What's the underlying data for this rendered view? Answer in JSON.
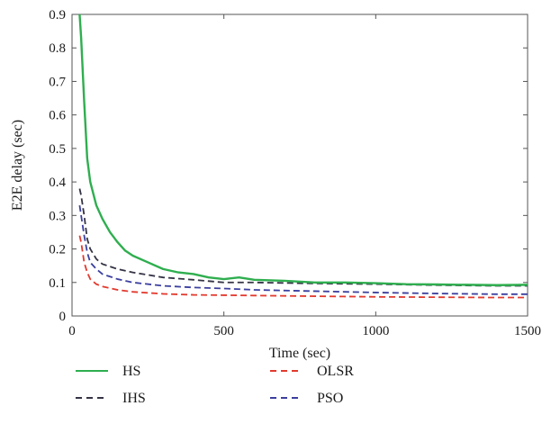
{
  "chart_data": {
    "type": "line",
    "xlabel": "Time (sec)",
    "ylabel": "E2E delay (sec)",
    "xlim": [
      0,
      1500
    ],
    "ylim": [
      0,
      0.9
    ],
    "xticks": [
      "0",
      "500",
      "1000",
      "1500"
    ],
    "yticks": [
      "0",
      "0.1",
      "0.2",
      "0.3",
      "0.4",
      "0.5",
      "0.6",
      "0.7",
      "0.8",
      "0.9"
    ],
    "grid": false,
    "legend_position": "below",
    "series": [
      {
        "name": "HS",
        "color": "#2fae4f",
        "dash": "solid",
        "x": [
          25,
          30,
          40,
          50,
          60,
          80,
          100,
          125,
          150,
          175,
          200,
          250,
          300,
          350,
          400,
          450,
          500,
          550,
          600,
          700,
          800,
          900,
          1000,
          1100,
          1200,
          1300,
          1400,
          1500
        ],
        "y": [
          0.9,
          0.83,
          0.64,
          0.47,
          0.4,
          0.33,
          0.29,
          0.25,
          0.22,
          0.195,
          0.18,
          0.16,
          0.14,
          0.13,
          0.125,
          0.115,
          0.11,
          0.115,
          0.108,
          0.105,
          0.1,
          0.1,
          0.098,
          0.095,
          0.094,
          0.093,
          0.092,
          0.093
        ]
      },
      {
        "name": "IHS",
        "color": "#333344",
        "dash": "dashed",
        "x": [
          25,
          30,
          40,
          50,
          60,
          80,
          100,
          150,
          200,
          300,
          400,
          500,
          600,
          800,
          1000,
          1200,
          1400,
          1500
        ],
        "y": [
          0.38,
          0.36,
          0.3,
          0.23,
          0.2,
          0.17,
          0.155,
          0.14,
          0.13,
          0.115,
          0.108,
          0.1,
          0.1,
          0.097,
          0.095,
          0.092,
          0.09,
          0.09
        ]
      },
      {
        "name": "OLSR",
        "color": "#e23a2e",
        "dash": "dashed",
        "x": [
          25,
          30,
          40,
          50,
          60,
          80,
          100,
          150,
          200,
          300,
          400,
          500,
          600,
          800,
          1000,
          1200,
          1400,
          1500
        ],
        "y": [
          0.24,
          0.22,
          0.16,
          0.13,
          0.11,
          0.095,
          0.088,
          0.078,
          0.072,
          0.066,
          0.063,
          0.062,
          0.061,
          0.059,
          0.057,
          0.056,
          0.055,
          0.055
        ]
      },
      {
        "name": "PSO",
        "color": "#3b3f9e",
        "dash": "dashed",
        "x": [
          25,
          30,
          40,
          50,
          60,
          80,
          100,
          150,
          200,
          300,
          400,
          500,
          600,
          800,
          1000,
          1200,
          1400,
          1500
        ],
        "y": [
          0.33,
          0.3,
          0.24,
          0.19,
          0.16,
          0.14,
          0.125,
          0.11,
          0.1,
          0.09,
          0.085,
          0.082,
          0.078,
          0.074,
          0.07,
          0.067,
          0.065,
          0.065
        ]
      }
    ]
  }
}
